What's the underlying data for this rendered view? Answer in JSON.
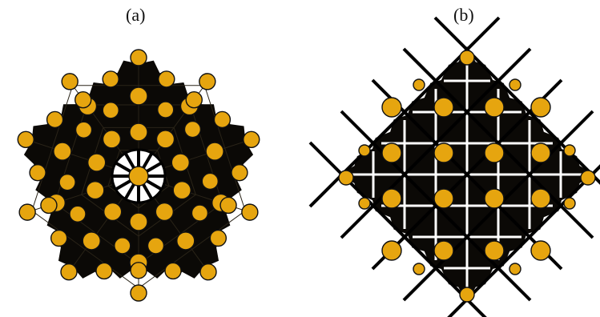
{
  "panels": [
    {
      "label": "(a)"
    },
    {
      "label": "(b)"
    }
  ],
  "colors": {
    "atom_fill": "#E6A50F",
    "atom_stroke": "#111111",
    "frame": "#0b0906",
    "bond": "#000000",
    "background": "#ffffff"
  }
}
